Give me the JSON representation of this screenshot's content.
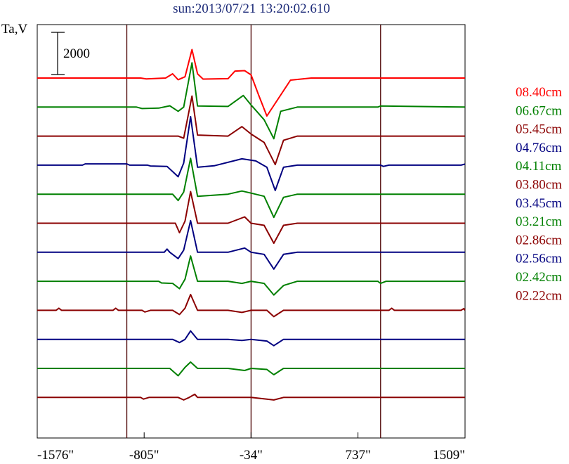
{
  "chart_data": {
    "type": "line",
    "title": "sun:2013/07/21 13:20:02.610",
    "ylabel": "Ta,V",
    "xlabel": "",
    "x_ticks": [
      "-1576\"",
      "-805\"",
      "-34\"",
      "737\"",
      "1509\""
    ],
    "x_tick_values": [
      -1576,
      -805,
      -34,
      737,
      1509
    ],
    "xlim": [
      -1576,
      1509
    ],
    "vertical_lines": [
      -930,
      -34,
      900
    ],
    "scale_bar": {
      "label": "2000",
      "value": 2000
    },
    "grid": false,
    "legend_placement": "right",
    "series": [
      {
        "name": "08.40cm",
        "color": "#ff0000",
        "baseline": 0,
        "points": [
          [
            -1576,
            0
          ],
          [
            -830,
            0
          ],
          [
            -790,
            -40
          ],
          [
            -650,
            0
          ],
          [
            -600,
            200
          ],
          [
            -560,
            -80
          ],
          [
            -510,
            60
          ],
          [
            -460,
            1350
          ],
          [
            -420,
            200
          ],
          [
            -380,
            -50
          ],
          [
            -200,
            -30
          ],
          [
            -150,
            330
          ],
          [
            -80,
            350
          ],
          [
            -34,
            150
          ],
          [
            20,
            -800
          ],
          [
            80,
            -1800
          ],
          [
            130,
            -1300
          ],
          [
            250,
            -100
          ],
          [
            400,
            0
          ],
          [
            1509,
            0
          ]
        ]
      },
      {
        "name": "06.67cm",
        "color": "#008000",
        "baseline": 1,
        "points": [
          [
            -1576,
            0
          ],
          [
            -860,
            0
          ],
          [
            -820,
            -70
          ],
          [
            -700,
            -50
          ],
          [
            -620,
            60
          ],
          [
            -560,
            -200
          ],
          [
            -520,
            0
          ],
          [
            -460,
            2100
          ],
          [
            -420,
            50
          ],
          [
            -200,
            30
          ],
          [
            -90,
            550
          ],
          [
            -34,
            100
          ],
          [
            60,
            -600
          ],
          [
            130,
            -1500
          ],
          [
            180,
            -200
          ],
          [
            300,
            0
          ],
          [
            880,
            0
          ],
          [
            900,
            50
          ],
          [
            1509,
            0
          ]
        ]
      },
      {
        "name": "05.45cm",
        "color": "#8b0000",
        "baseline": 2,
        "points": [
          [
            -1576,
            0
          ],
          [
            -560,
            0
          ],
          [
            -520,
            -100
          ],
          [
            -460,
            1900
          ],
          [
            -420,
            50
          ],
          [
            -200,
            0
          ],
          [
            -100,
            450
          ],
          [
            -34,
            100
          ],
          [
            60,
            -300
          ],
          [
            140,
            -1350
          ],
          [
            200,
            -200
          ],
          [
            300,
            0
          ],
          [
            1509,
            0
          ]
        ]
      },
      {
        "name": "04.76cm",
        "color": "#000080",
        "baseline": 3,
        "points": [
          [
            -1576,
            0
          ],
          [
            -1250,
            0
          ],
          [
            -1230,
            60
          ],
          [
            -930,
            60
          ],
          [
            -910,
            0
          ],
          [
            -780,
            0
          ],
          [
            -760,
            -40
          ],
          [
            -640,
            -60
          ],
          [
            -560,
            -550
          ],
          [
            -520,
            100
          ],
          [
            -470,
            2300
          ],
          [
            -420,
            -100
          ],
          [
            -300,
            -30
          ],
          [
            -100,
            300
          ],
          [
            -50,
            250
          ],
          [
            0,
            200
          ],
          [
            80,
            -100
          ],
          [
            140,
            -1200
          ],
          [
            200,
            -100
          ],
          [
            300,
            0
          ],
          [
            900,
            0
          ],
          [
            920,
            -60
          ],
          [
            960,
            0
          ],
          [
            1480,
            0
          ],
          [
            1509,
            50
          ]
        ]
      },
      {
        "name": "04.11cm",
        "color": "#008000",
        "baseline": 4,
        "points": [
          [
            -1576,
            0
          ],
          [
            -600,
            0
          ],
          [
            -560,
            -300
          ],
          [
            -520,
            100
          ],
          [
            -470,
            1700
          ],
          [
            -420,
            -100
          ],
          [
            -200,
            0
          ],
          [
            -100,
            150
          ],
          [
            -34,
            50
          ],
          [
            60,
            -100
          ],
          [
            130,
            -1100
          ],
          [
            200,
            -150
          ],
          [
            300,
            0
          ],
          [
            1509,
            0
          ]
        ]
      },
      {
        "name": "03.80cm",
        "color": "#8b0000",
        "baseline": 5,
        "points": [
          [
            -1576,
            0
          ],
          [
            -580,
            0
          ],
          [
            -550,
            -450
          ],
          [
            -510,
            100
          ],
          [
            -470,
            1500
          ],
          [
            -420,
            0
          ],
          [
            -200,
            0
          ],
          [
            -80,
            300
          ],
          [
            -34,
            0
          ],
          [
            60,
            -100
          ],
          [
            130,
            -950
          ],
          [
            200,
            -100
          ],
          [
            300,
            0
          ],
          [
            1509,
            0
          ]
        ]
      },
      {
        "name": "03.45cm",
        "color": "#000080",
        "baseline": 6,
        "points": [
          [
            -1576,
            0
          ],
          [
            -660,
            0
          ],
          [
            -640,
            150
          ],
          [
            -620,
            0
          ],
          [
            -560,
            -300
          ],
          [
            -520,
            100
          ],
          [
            -470,
            1500
          ],
          [
            -420,
            0
          ],
          [
            -200,
            0
          ],
          [
            -80,
            200
          ],
          [
            -34,
            0
          ],
          [
            60,
            -100
          ],
          [
            130,
            -800
          ],
          [
            200,
            -100
          ],
          [
            300,
            0
          ],
          [
            1509,
            0
          ]
        ]
      },
      {
        "name": "03.21cm",
        "color": "#008000",
        "baseline": 7,
        "points": [
          [
            -1576,
            0
          ],
          [
            -700,
            0
          ],
          [
            -680,
            -80
          ],
          [
            -600,
            -100
          ],
          [
            -550,
            -350
          ],
          [
            -510,
            100
          ],
          [
            -470,
            1200
          ],
          [
            -420,
            0
          ],
          [
            -200,
            0
          ],
          [
            -100,
            -100
          ],
          [
            -34,
            0
          ],
          [
            60,
            -100
          ],
          [
            130,
            -650
          ],
          [
            200,
            -200
          ],
          [
            300,
            0
          ],
          [
            880,
            0
          ],
          [
            900,
            -100
          ],
          [
            940,
            0
          ],
          [
            1509,
            0
          ]
        ]
      },
      {
        "name": "02.86cm",
        "color": "#8b0000",
        "baseline": 8,
        "points": [
          [
            -1576,
            0
          ],
          [
            -1440,
            0
          ],
          [
            -1420,
            100
          ],
          [
            -1400,
            0
          ],
          [
            -1030,
            0
          ],
          [
            -1010,
            100
          ],
          [
            -990,
            0
          ],
          [
            -820,
            0
          ],
          [
            -800,
            -80
          ],
          [
            -760,
            0
          ],
          [
            -600,
            0
          ],
          [
            -550,
            -200
          ],
          [
            -510,
            100
          ],
          [
            -470,
            750
          ],
          [
            -420,
            0
          ],
          [
            -200,
            0
          ],
          [
            -100,
            -100
          ],
          [
            -34,
            0
          ],
          [
            80,
            0
          ],
          [
            130,
            -300
          ],
          [
            200,
            0
          ],
          [
            960,
            0
          ],
          [
            980,
            100
          ],
          [
            1000,
            0
          ],
          [
            1480,
            0
          ],
          [
            1500,
            80
          ],
          [
            1509,
            0
          ]
        ]
      },
      {
        "name": "02.56cm",
        "color": "#000080",
        "baseline": 9,
        "points": [
          [
            -1576,
            0
          ],
          [
            -600,
            0
          ],
          [
            -550,
            -150
          ],
          [
            -510,
            0
          ],
          [
            -470,
            400
          ],
          [
            -420,
            0
          ],
          [
            -200,
            0
          ],
          [
            -100,
            -50
          ],
          [
            -34,
            0
          ],
          [
            80,
            -80
          ],
          [
            130,
            -300
          ],
          [
            200,
            0
          ],
          [
            1509,
            0
          ]
        ]
      },
      {
        "name": "02.42cm",
        "color": "#008000",
        "baseline": 10,
        "points": [
          [
            -1576,
            0
          ],
          [
            -620,
            0
          ],
          [
            -560,
            -350
          ],
          [
            -510,
            50
          ],
          [
            -470,
            300
          ],
          [
            -420,
            0
          ],
          [
            -200,
            0
          ],
          [
            -80,
            -100
          ],
          [
            -34,
            0
          ],
          [
            80,
            -50
          ],
          [
            130,
            -300
          ],
          [
            200,
            0
          ],
          [
            1509,
            0
          ]
        ]
      },
      {
        "name": "02.22cm",
        "color": "#8b0000",
        "baseline": 11,
        "points": [
          [
            -1576,
            0
          ],
          [
            -830,
            0
          ],
          [
            -810,
            -80
          ],
          [
            -770,
            0
          ],
          [
            -560,
            0
          ],
          [
            -520,
            -120
          ],
          [
            -480,
            0
          ],
          [
            -440,
            150
          ],
          [
            -420,
            0
          ],
          [
            -34,
            0
          ],
          [
            80,
            -80
          ],
          [
            130,
            -120
          ],
          [
            200,
            0
          ],
          [
            1509,
            0
          ]
        ]
      }
    ]
  }
}
